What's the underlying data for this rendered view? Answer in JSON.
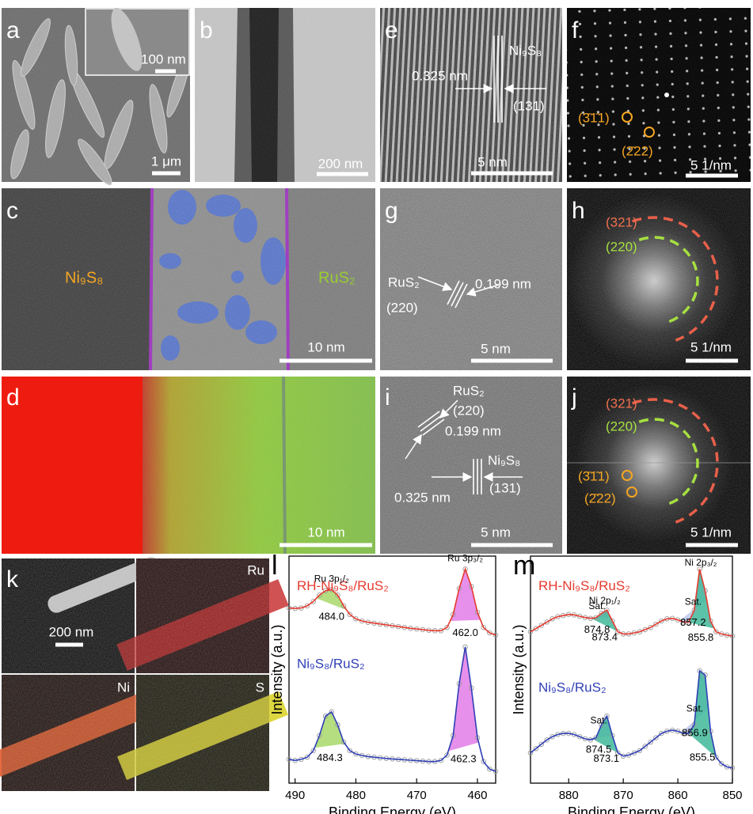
{
  "panels": {
    "a": {
      "label": "a",
      "inset_scale": "100 nm",
      "scale": "1 μm"
    },
    "b": {
      "label": "b",
      "scale": "200 nm"
    },
    "e": {
      "label": "e",
      "spacing": "0.325 nm",
      "phase": "Ni₉S₈",
      "plane": "(131)",
      "scale": "5 nm"
    },
    "f": {
      "label": "f",
      "spots": [
        "(3̄1̄1)",
        "(2̄22)"
      ],
      "scale": "5 1/nm"
    },
    "c": {
      "label": "c",
      "left": "Ni₉S₈",
      "right": "RuS₂",
      "scale": "10 nm"
    },
    "g": {
      "label": "g",
      "phase": "RuS₂",
      "plane": "(220)",
      "spacing": "0.199 nm",
      "scale": "5 nm"
    },
    "h": {
      "label": "h",
      "rings": [
        "(321)",
        "(220)"
      ],
      "scale": "5 1/nm"
    },
    "d": {
      "label": "d",
      "scale": "10 nm"
    },
    "i": {
      "label": "i",
      "phase1": "RuS₂",
      "plane1": "(220)",
      "spacing1": "0.199 nm",
      "spacing2": "0.325 nm",
      "phase2": "Ni₉S₈",
      "plane2": "(131)",
      "scale": "5 nm"
    },
    "j": {
      "label": "j",
      "rings": [
        "(321)",
        "(220)"
      ],
      "spots": [
        "(3̄1̄1)",
        "(2̄22)"
      ],
      "scale": "5 1/nm"
    },
    "k": {
      "label": "k",
      "scale": "200 nm",
      "maps": [
        "Ru",
        "Ni",
        "S"
      ]
    }
  },
  "chart_data": [
    {
      "type": "line",
      "panel_label": "l",
      "x_label": "Binding Energy (eV)",
      "y_label": "Intensity (a.u.)",
      "xlim": [
        491,
        457
      ],
      "xticks": [
        490,
        480,
        470,
        460
      ],
      "ylim": [
        0,
        10.5
      ],
      "peak_colors": [
        "#a8d86a",
        "#e27de8"
      ],
      "x": [
        491,
        490,
        489,
        488,
        487,
        486,
        485,
        484,
        483,
        482,
        481,
        480,
        479,
        478,
        477,
        476,
        475,
        474,
        473,
        472,
        471,
        470,
        469,
        468,
        467,
        466,
        465,
        464,
        463,
        462,
        461,
        460,
        459,
        458,
        457
      ],
      "series": [
        {
          "name": "RH-Ni₉S₈/RuS₂",
          "color": "#e53a2f",
          "values": [
            8.1,
            8.08,
            8.1,
            8.2,
            8.4,
            8.7,
            8.9,
            8.95,
            8.7,
            8.2,
            7.8,
            7.6,
            7.5,
            7.44,
            7.4,
            7.36,
            7.32,
            7.28,
            7.24,
            7.2,
            7.16,
            7.13,
            7.1,
            7.07,
            7.05,
            7.05,
            7.2,
            7.8,
            9.0,
            9.9,
            9.1,
            7.9,
            7.2,
            6.95,
            6.85
          ],
          "peaks": [
            484.0,
            462.0
          ],
          "peak_labels": [
            "484.0",
            "462.0"
          ],
          "peak_names": [
            "Ru 3p₁/₂",
            "Ru 3p₃/₂"
          ]
        },
        {
          "name": "Ni₉S₈/RuS₂",
          "color": "#2f3fb5",
          "values": [
            1.1,
            1.05,
            1.1,
            1.2,
            1.5,
            2.2,
            3.1,
            3.3,
            2.7,
            1.9,
            1.5,
            1.35,
            1.28,
            1.23,
            1.2,
            1.17,
            1.14,
            1.12,
            1.1,
            1.08,
            1.06,
            1.04,
            1.02,
            1.0,
            1.0,
            1.05,
            1.3,
            2.2,
            4.6,
            6.3,
            4.4,
            2.1,
            1.0,
            0.65,
            0.55
          ],
          "peaks": [
            484.3,
            462.3
          ],
          "peak_labels": [
            "484.3",
            "462.3"
          ],
          "peak_names": [
            null,
            null
          ]
        }
      ]
    },
    {
      "type": "line",
      "panel_label": "m",
      "x_label": "Binding Energy (eV)",
      "y_label": "Intensity (a.u.)",
      "xlim": [
        887,
        850
      ],
      "xticks": [
        880,
        870,
        860,
        850
      ],
      "ylim": [
        0,
        10.5
      ],
      "peak_colors": [
        "#bcc6ea",
        "#3fb89a",
        "#bcc6ea",
        "#3fb89a"
      ],
      "x": [
        887,
        886,
        885,
        884,
        883,
        882,
        881,
        880,
        879,
        878,
        877,
        876,
        875,
        874,
        873,
        872,
        871,
        870,
        869,
        868,
        867,
        866,
        865,
        864,
        863,
        862,
        861,
        860,
        859,
        858,
        857,
        856,
        855,
        854,
        853,
        852,
        851,
        850
      ],
      "series": [
        {
          "name": "RH-Ni₉S₈/RuS₂",
          "color": "#e53a2f",
          "values": [
            7.0,
            7.15,
            7.3,
            7.45,
            7.6,
            7.7,
            7.75,
            7.8,
            7.78,
            7.72,
            7.66,
            7.62,
            7.65,
            7.85,
            8.0,
            7.5,
            7.0,
            6.9,
            6.9,
            6.95,
            7.0,
            7.1,
            7.2,
            7.35,
            7.5,
            7.6,
            7.62,
            7.55,
            7.45,
            7.45,
            8.0,
            9.9,
            8.9,
            7.5,
            7.0,
            6.9,
            6.85,
            6.8
          ],
          "peaks": [
            874.8,
            873.4,
            857.2,
            855.8
          ],
          "peak_labels": [
            "874.8",
            "873.4",
            "857.2",
            "855.8"
          ],
          "peak_names": [
            "Sat.",
            "Ni 2p₁/₂",
            "Sat.",
            "Ni 2p₃/₂"
          ]
        },
        {
          "name": "Ni₉S₈/RuS₂",
          "color": "#2f3fb5",
          "values": [
            1.4,
            1.6,
            1.8,
            2.0,
            2.15,
            2.25,
            2.3,
            2.3,
            2.25,
            2.15,
            2.05,
            2.0,
            2.1,
            2.7,
            3.1,
            2.2,
            1.4,
            1.25,
            1.3,
            1.4,
            1.5,
            1.7,
            1.9,
            2.1,
            2.3,
            2.4,
            2.45,
            2.4,
            2.3,
            2.3,
            2.7,
            5.2,
            5.0,
            2.4,
            1.2,
            0.9,
            0.75,
            0.7
          ],
          "peaks": [
            874.5,
            873.1,
            856.9,
            855.5
          ],
          "peak_labels": [
            "874.5",
            "873.1",
            "856.9",
            "855.5"
          ],
          "peak_names": [
            "Sat.",
            null,
            "Sat.",
            null
          ]
        }
      ]
    }
  ]
}
